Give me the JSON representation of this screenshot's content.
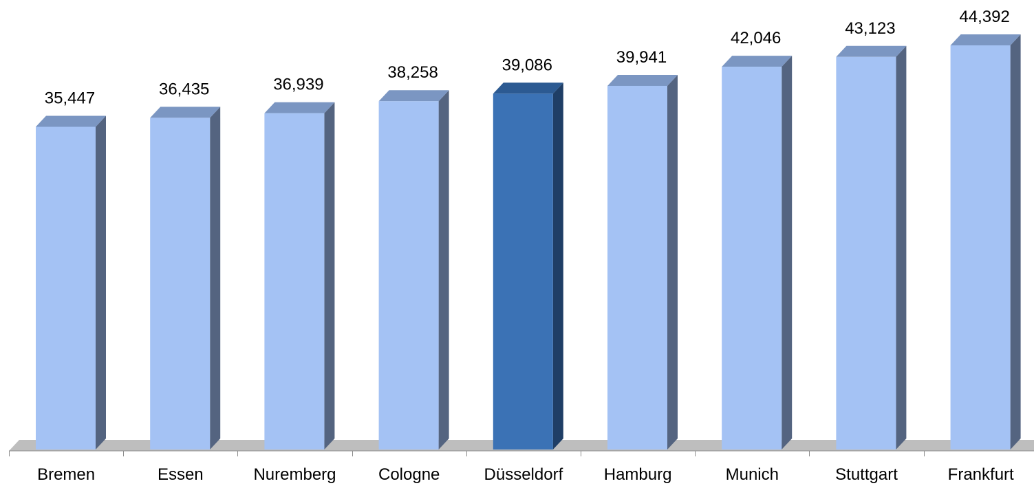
{
  "chart_data": {
    "type": "bar",
    "style": "3d-column",
    "categories": [
      "Bremen",
      "Essen",
      "Nuremberg",
      "Cologne",
      "Düsseldorf",
      "Hamburg",
      "Munich",
      "Stuttgart",
      "Frankfurt"
    ],
    "values": [
      35447,
      36435,
      36939,
      38258,
      39086,
      39941,
      42046,
      43123,
      44392
    ],
    "value_labels": [
      "35,447",
      "36,435",
      "36,939",
      "38,258",
      "39,086",
      "39,941",
      "42,046",
      "43,123",
      "44,392"
    ],
    "highlight_category": "Düsseldorf",
    "ylim": [
      0,
      44392
    ],
    "y_axis_visible": false,
    "grid": false,
    "legend": "none",
    "colors": {
      "bar_front": "#A4C2F4",
      "bar_top": "#7B96C2",
      "bar_side": "#546480",
      "highlight_front": "#3B72B5",
      "highlight_top": "#2C5A92",
      "highlight_side": "#1F3E66",
      "floor": "#BEBEBE",
      "axis": "#8C8C8C"
    }
  }
}
